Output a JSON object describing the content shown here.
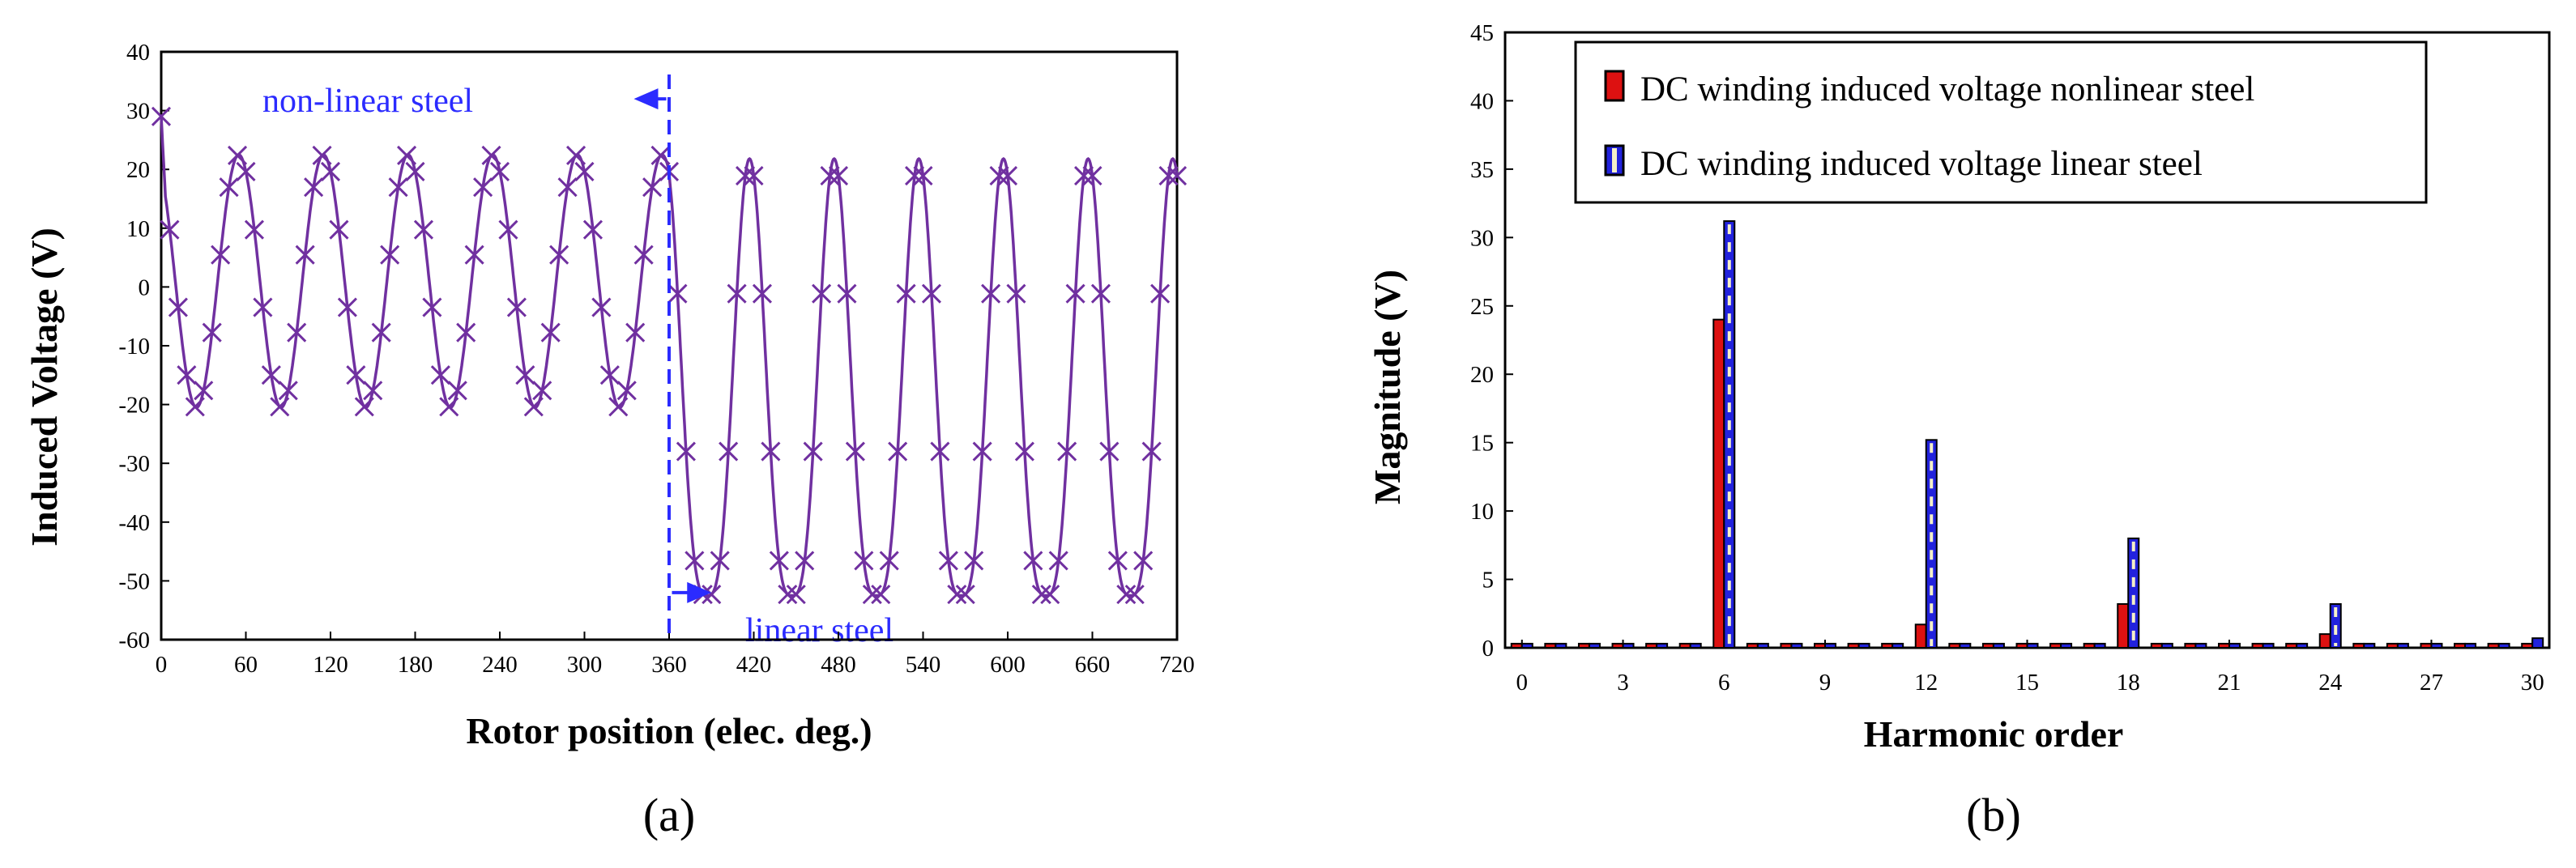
{
  "chart_data": [
    {
      "type": "line",
      "panel_label": "(a)",
      "xlabel": "Rotor position (elec. deg.)",
      "ylabel": "Induced Voltage (V)",
      "xlim": [
        0,
        720
      ],
      "ylim": [
        -60,
        40
      ],
      "xticks": [
        0,
        60,
        120,
        180,
        240,
        300,
        360,
        420,
        480,
        540,
        600,
        660,
        720
      ],
      "yticks": [
        -60,
        -50,
        -40,
        -30,
        -20,
        -10,
        0,
        10,
        20,
        30,
        40
      ],
      "grid": false,
      "line_color": "#7030a0",
      "series": [
        {
          "name": "nonlinear steel",
          "x_range": [
            0,
            360
          ],
          "model": {
            "period_deg": 60,
            "mean": 1.0,
            "amplitude": 21.5,
            "peak_at_deg": 55
          },
          "marker": "x"
        },
        {
          "name": "linear steel",
          "x_range": [
            360,
            720
          ],
          "model": {
            "period_deg": 60,
            "peak_deg": 57,
            "trough_deg": 27,
            "max": 21.8,
            "min": -52.5,
            "shape_power": 1.6
          },
          "marker": "x"
        }
      ],
      "divider": {
        "x": 360,
        "style": "dashed",
        "color": "#2b2bff"
      },
      "annotations": [
        {
          "text": "non-linear steel",
          "arrow_direction": "left",
          "arrow_y": 32,
          "arrow_from_x": 358,
          "arrow_to_x": 335,
          "color": "#2b2bff"
        },
        {
          "text": "linear steel",
          "arrow_direction": "right",
          "arrow_y": -52,
          "arrow_from_x": 362,
          "arrow_to_x": 390,
          "color": "#2b2bff"
        }
      ]
    },
    {
      "type": "bar",
      "panel_label": "(b)",
      "xlabel": "Harmonic order",
      "ylabel": "Magnitude (V)",
      "xlim": [
        -0.5,
        30.5
      ],
      "ylim": [
        0,
        45
      ],
      "xticks": [
        0,
        3,
        6,
        9,
        12,
        15,
        18,
        21,
        24,
        27,
        30
      ],
      "yticks": [
        0,
        5,
        10,
        15,
        20,
        25,
        30,
        35,
        40,
        45
      ],
      "grid": false,
      "legend_position": "top-left",
      "categories": [
        0,
        1,
        2,
        3,
        4,
        5,
        6,
        7,
        8,
        9,
        10,
        11,
        12,
        13,
        14,
        15,
        16,
        17,
        18,
        19,
        20,
        21,
        22,
        23,
        24,
        25,
        26,
        27,
        28,
        29,
        30
      ],
      "series": [
        {
          "name": "DC winding induced voltage nonlinear steel",
          "color": "#dd1111",
          "values": [
            0.3,
            0.3,
            0.3,
            0.3,
            0.3,
            0.3,
            24,
            0.3,
            0.3,
            0.3,
            0.3,
            0.3,
            1.7,
            0.3,
            0.3,
            0.3,
            0.3,
            0.3,
            3.2,
            0.3,
            0.3,
            0.3,
            0.3,
            0.3,
            1.0,
            0.3,
            0.3,
            0.3,
            0.3,
            0.3,
            0.3
          ]
        },
        {
          "name": "DC winding induced voltage linear steel",
          "color": "#2222dd",
          "values": [
            0.3,
            0.3,
            0.3,
            0.3,
            0.3,
            0.3,
            31.2,
            0.3,
            0.3,
            0.3,
            0.3,
            0.3,
            15.2,
            0.3,
            0.3,
            0.3,
            0.3,
            0.3,
            8.0,
            0.3,
            0.3,
            0.3,
            0.3,
            0.3,
            3.2,
            0.3,
            0.3,
            0.3,
            0.3,
            0.3,
            0.7
          ]
        }
      ]
    }
  ]
}
